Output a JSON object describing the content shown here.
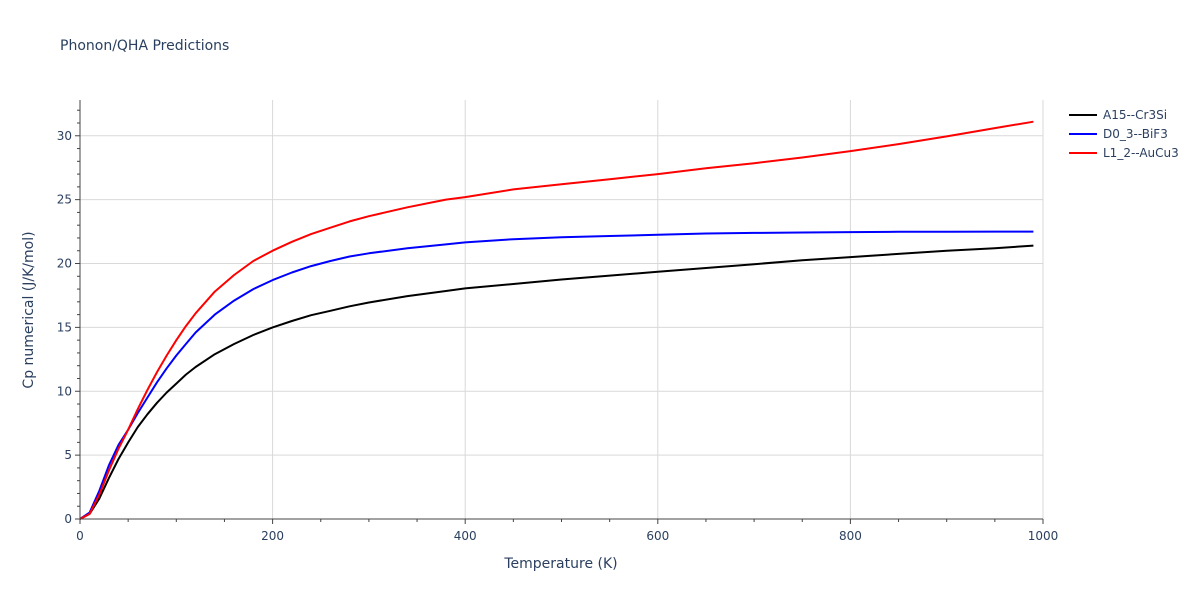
{
  "chart_data": {
    "type": "line",
    "title": "Phonon/QHA Predictions",
    "xlabel": "Temperature (K)",
    "ylabel": "Cp numerical (J/K/mol)",
    "xlim": [
      0,
      1000
    ],
    "ylim": [
      0,
      32.8
    ],
    "x_ticks": [
      0,
      200,
      400,
      600,
      800,
      1000
    ],
    "y_ticks": [
      0,
      5,
      10,
      15,
      20,
      25,
      30
    ],
    "grid": true,
    "legend_position": "top-right",
    "series": [
      {
        "name": "A15--Cr3Si",
        "color": "#000000",
        "x": [
          0,
          10,
          20,
          30,
          40,
          50,
          60,
          70,
          80,
          90,
          100,
          110,
          120,
          140,
          160,
          180,
          200,
          220,
          240,
          260,
          280,
          300,
          340,
          380,
          400,
          450,
          500,
          550,
          600,
          650,
          700,
          750,
          800,
          850,
          900,
          950,
          990
        ],
        "y": [
          0,
          0.4,
          1.6,
          3.2,
          4.7,
          6.0,
          7.2,
          8.2,
          9.1,
          9.9,
          10.6,
          11.3,
          11.9,
          12.9,
          13.7,
          14.4,
          15.0,
          15.5,
          15.95,
          16.3,
          16.65,
          16.95,
          17.45,
          17.85,
          18.05,
          18.4,
          18.75,
          19.05,
          19.35,
          19.65,
          19.95,
          20.25,
          20.5,
          20.75,
          21.0,
          21.2,
          21.4
        ]
      },
      {
        "name": "D0_3--BiF3",
        "color": "#0000ff",
        "x": [
          0,
          10,
          20,
          30,
          40,
          50,
          60,
          70,
          80,
          90,
          100,
          110,
          120,
          140,
          160,
          180,
          200,
          220,
          240,
          260,
          280,
          300,
          340,
          380,
          400,
          450,
          500,
          550,
          600,
          650,
          700,
          750,
          800,
          850,
          900,
          950,
          990
        ],
        "y": [
          0,
          0.5,
          2.2,
          4.2,
          5.8,
          7.0,
          8.3,
          9.5,
          10.7,
          11.8,
          12.8,
          13.7,
          14.6,
          16.0,
          17.1,
          18.0,
          18.7,
          19.3,
          19.8,
          20.2,
          20.55,
          20.8,
          21.2,
          21.5,
          21.65,
          21.9,
          22.05,
          22.15,
          22.25,
          22.35,
          22.4,
          22.43,
          22.46,
          22.48,
          22.49,
          22.5,
          22.5
        ]
      },
      {
        "name": "L1_2--AuCu3",
        "color": "#ff0000",
        "x": [
          0,
          10,
          20,
          30,
          40,
          50,
          60,
          70,
          80,
          90,
          100,
          110,
          120,
          140,
          160,
          180,
          200,
          220,
          240,
          260,
          280,
          300,
          340,
          380,
          400,
          450,
          500,
          550,
          600,
          650,
          700,
          750,
          800,
          850,
          900,
          950,
          990
        ],
        "y": [
          0,
          0.4,
          1.9,
          3.8,
          5.5,
          7.0,
          8.6,
          10.1,
          11.5,
          12.8,
          14.0,
          15.1,
          16.1,
          17.8,
          19.1,
          20.2,
          21.0,
          21.7,
          22.3,
          22.8,
          23.3,
          23.7,
          24.4,
          25.0,
          25.2,
          25.8,
          26.2,
          26.6,
          27.0,
          27.45,
          27.85,
          28.3,
          28.8,
          29.35,
          29.95,
          30.6,
          31.1
        ]
      }
    ]
  }
}
